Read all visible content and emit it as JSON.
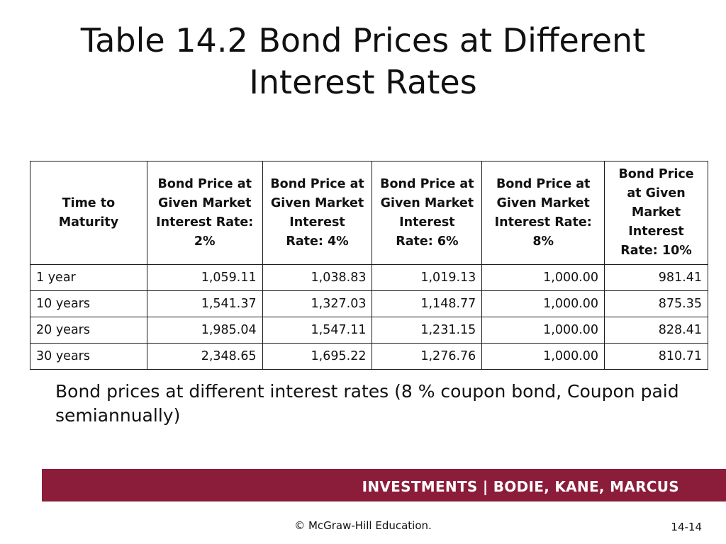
{
  "slide": {
    "title": "Table 14.2 Bond Prices at Different Interest Rates",
    "caption": "Bond prices at different interest rates (8 % coupon bond, Coupon paid semiannually)"
  },
  "table": {
    "headers": [
      "Time to Maturity",
      "Bond Price at Given Market Interest Rate: 2%",
      "Bond Price at Given Market Interest Rate: 4%",
      "Bond Price at Given Market Interest Rate: 6%",
      "Bond Price at Given Market Interest Rate: 8%",
      "Bond Price at Given Market Interest Rate: 10%"
    ],
    "rows": [
      [
        "1 year",
        "1,059.11",
        "1,038.83",
        "1,019.13",
        "1,000.00",
        "981.41"
      ],
      [
        "10 years",
        "1,541.37",
        "1,327.03",
        "1,148.77",
        "1,000.00",
        "875.35"
      ],
      [
        "20 years",
        "1,985.04",
        "1,547.11",
        "1,231.15",
        "1,000.00",
        "828.41"
      ],
      [
        "30 years",
        "2,348.65",
        "1,695.22",
        "1,276.76",
        "1,000.00",
        "810.71"
      ]
    ]
  },
  "footer": {
    "band_text": "INVESTMENTS | BODIE, KANE, MARCUS",
    "copyright": "© McGraw-Hill Education.",
    "page_number": "14-14",
    "band_color": "#8b1d3a"
  }
}
